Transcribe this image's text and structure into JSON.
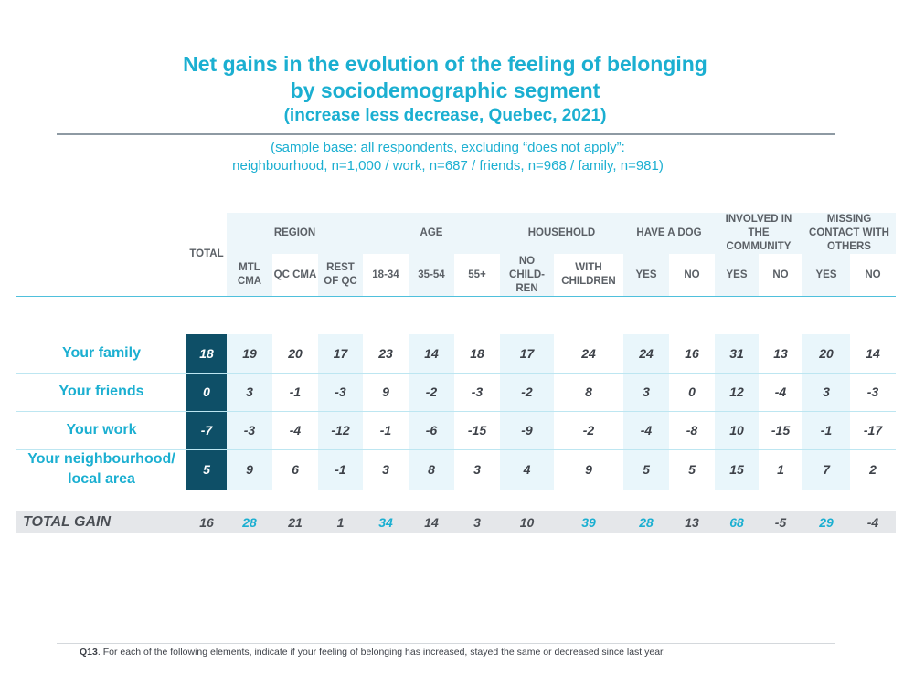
{
  "title": {
    "line1": "Net gains in the evolution of the feeling of belonging",
    "line2": "by sociodemographic segment",
    "line3": "(increase less decrease, Quebec, 2021)"
  },
  "sample_base": {
    "line1": "(sample base:  all respondents, excluding “does not apply”:",
    "line2": "neighbourhood, n=1,000 / work, n=687 / friends, n=968 / family, n=981)"
  },
  "header": {
    "total": "TOTAL",
    "groups": [
      {
        "label": "REGION"
      },
      {
        "label": "AGE"
      },
      {
        "label": "HOUSEHOLD"
      },
      {
        "label": "HAVE A DOG"
      },
      {
        "label": "INVOLVED IN THE COMMUNITY"
      },
      {
        "label": "MISSING CONTACT WITH OTHERS"
      }
    ],
    "subs": [
      "MTL CMA",
      "QC CMA",
      "REST OF QC",
      "18-34",
      "35-54",
      "55+",
      "NO CHILD-REN",
      "WITH CHILDREN",
      "YES",
      "NO",
      "YES",
      "NO",
      "YES",
      "NO"
    ]
  },
  "colors": {
    "accent": "#1bafd1",
    "total_column": "#0e4f67",
    "shaded_column": "#e9f6fb",
    "header_band": "#edf6fa",
    "gain_band": "#e5e7ea"
  },
  "chart_data": {
    "type": "table",
    "title": "Net gains in the evolution of the feeling of belonging by sociodemographic segment",
    "columns": [
      "TOTAL",
      "MTL CMA",
      "QC CMA",
      "REST OF QC",
      "18-34",
      "35-54",
      "55+",
      "NO CHILD-REN",
      "WITH CHILDREN",
      "YES",
      "NO",
      "YES",
      "NO",
      "YES",
      "NO"
    ],
    "rows": [
      {
        "label": "Your family",
        "values": [
          "18",
          "19",
          "20",
          "17",
          "23",
          "14",
          "18",
          "17",
          "24",
          "24",
          "16",
          "31",
          "13",
          "20",
          "14"
        ]
      },
      {
        "label": "Your friends",
        "values": [
          "0",
          "3",
          "-1",
          "-3",
          "9",
          "-2",
          "-3",
          "-2",
          "8",
          "3",
          "0",
          "12",
          "-4",
          "3",
          "-3"
        ]
      },
      {
        "label": "Your work",
        "values": [
          "-7",
          "-3",
          "-4",
          "-12",
          "-1",
          "-6",
          "-15",
          "-9",
          "-2",
          "-4",
          "-8",
          "10",
          "-15",
          "-1",
          "-17"
        ]
      },
      {
        "label": "Your neighbourhood/ local area",
        "values": [
          "5",
          "9",
          "6",
          "-1",
          "3",
          "8",
          "3",
          "4",
          "9",
          "5",
          "5",
          "15",
          "1",
          "7",
          "2"
        ]
      }
    ],
    "total_gain": {
      "label": "TOTAL GAIN",
      "values": [
        "16",
        "28",
        "21",
        "1",
        "34",
        "14",
        "3",
        "10",
        "39",
        "28",
        "13",
        "68",
        "-5",
        "29",
        "-4"
      ],
      "highlighted": [
        false,
        true,
        false,
        false,
        true,
        false,
        false,
        false,
        true,
        true,
        false,
        true,
        false,
        true,
        false
      ]
    }
  },
  "footnote": {
    "code": "Q13",
    "text": ". For each of the following elements, indicate if your feeling of belonging has increased, stayed the same or decreased since last year."
  }
}
